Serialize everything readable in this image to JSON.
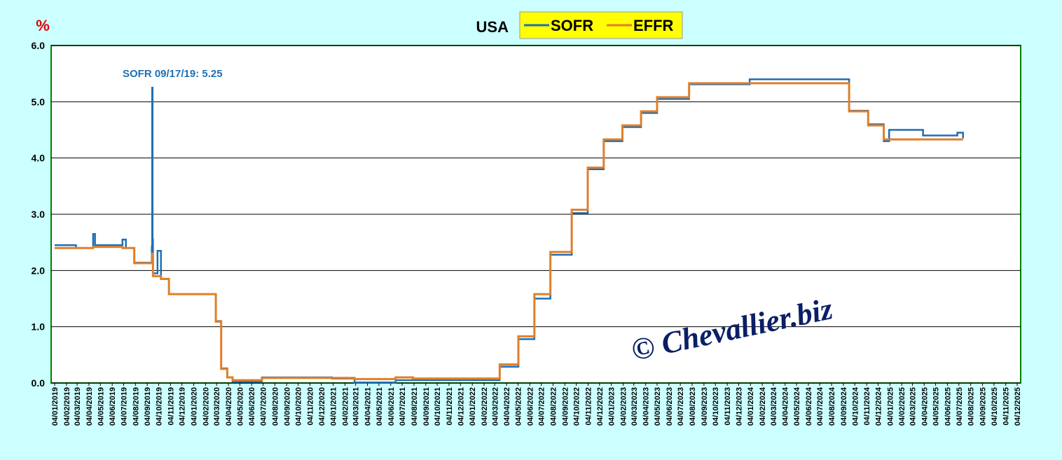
{
  "chart_data": {
    "type": "line",
    "title": "USA",
    "y_unit": "%",
    "annotation": "SOFR 09/17/19: 5.25",
    "watermark": "© Chevallier.biz",
    "step": "after",
    "grid": true,
    "x": [
      "04/01/2019",
      "01/03/2019",
      "15/04/2019",
      "20/04/2019",
      "01/07/2019",
      "10/07/2019",
      "01/08/2019",
      "16/09/2019",
      "17/09/2019",
      "18/09/2019",
      "19/09/2019",
      "01/10/2019",
      "10/10/2019",
      "31/10/2019",
      "02/03/2020",
      "16/03/2020",
      "01/04/2020",
      "15/04/2020",
      "01/07/2020",
      "01/01/2021",
      "01/03/2021",
      "17/06/2021",
      "01/08/2021",
      "17/03/2022",
      "05/05/2022",
      "16/06/2022",
      "28/07/2022",
      "22/09/2022",
      "03/11/2022",
      "15/12/2022",
      "02/02/2023",
      "23/03/2023",
      "04/05/2023",
      "27/07/2023",
      "02/01/2024",
      "01/07/2024",
      "19/09/2024",
      "08/11/2024",
      "19/12/2024",
      "02/01/2025",
      "01/04/2025",
      "30/06/2025",
      "15/07/2025"
    ],
    "series": [
      {
        "name": "SOFR",
        "color": "#1f6fb4",
        "values": [
          2.45,
          2.4,
          2.65,
          2.45,
          2.55,
          2.4,
          2.14,
          2.43,
          5.25,
          2.55,
          1.95,
          2.35,
          1.85,
          1.58,
          1.1,
          0.26,
          0.1,
          0.02,
          0.1,
          0.08,
          0.01,
          0.05,
          0.05,
          0.29,
          0.78,
          1.5,
          2.28,
          3.02,
          3.8,
          4.3,
          4.55,
          4.8,
          5.05,
          5.31,
          5.4,
          5.4,
          4.84,
          4.6,
          4.3,
          4.5,
          4.4,
          4.45,
          4.35
        ]
      },
      {
        "name": "EFFR",
        "color": "#e07f2a",
        "values": [
          2.4,
          2.4,
          2.42,
          2.42,
          2.4,
          2.4,
          2.13,
          2.14,
          2.3,
          2.25,
          1.9,
          1.9,
          1.85,
          1.58,
          1.09,
          0.25,
          0.1,
          0.05,
          0.09,
          0.09,
          0.07,
          0.1,
          0.08,
          0.33,
          0.83,
          1.58,
          2.33,
          3.08,
          3.83,
          4.33,
          4.58,
          4.83,
          5.08,
          5.33,
          5.33,
          5.33,
          4.83,
          4.58,
          4.33,
          4.33,
          4.33,
          4.33,
          4.33
        ]
      }
    ],
    "ylim": [
      0,
      6
    ],
    "yticks": [
      {
        "value": 0,
        "label": "0.0"
      },
      {
        "value": 1,
        "label": "1.0"
      },
      {
        "value": 2,
        "label": "2.0"
      },
      {
        "value": 3,
        "label": "3.0"
      },
      {
        "value": 4,
        "label": "4.0"
      },
      {
        "value": 5,
        "label": "5.0"
      },
      {
        "value": 6,
        "label": "6.0"
      }
    ],
    "xlim": [
      "04/01/2019",
      "04/12/2025"
    ],
    "xticks": [
      "04/01/2019",
      "04/02/2019",
      "04/03/2019",
      "04/04/2019",
      "04/05/2019",
      "04/06/2019",
      "04/07/2019",
      "04/08/2019",
      "04/09/2019",
      "04/10/2019",
      "04/11/2019",
      "04/12/2019",
      "04/01/2020",
      "04/02/2020",
      "04/03/2020",
      "04/04/2020",
      "04/05/2020",
      "04/06/2020",
      "04/07/2020",
      "04/08/2020",
      "04/09/2020",
      "04/10/2020",
      "04/11/2020",
      "04/12/2020",
      "04/01/2021",
      "04/02/2021",
      "04/03/2021",
      "04/04/2021",
      "04/05/2021",
      "04/06/2021",
      "04/07/2021",
      "04/08/2021",
      "04/09/2021",
      "04/10/2021",
      "04/11/2021",
      "04/12/2021",
      "04/01/2022",
      "04/02/2022",
      "04/03/2022",
      "04/04/2022",
      "04/05/2022",
      "04/06/2022",
      "04/07/2022",
      "04/08/2022",
      "04/09/2022",
      "04/10/2022",
      "04/11/2022",
      "04/12/2022",
      "04/01/2023",
      "04/02/2023",
      "04/03/2023",
      "04/04/2023",
      "04/05/2023",
      "04/06/2023",
      "04/07/2023",
      "04/08/2023",
      "04/09/2023",
      "04/10/2023",
      "04/11/2023",
      "04/12/2023",
      "04/01/2024",
      "04/02/2024",
      "04/03/2024",
      "04/04/2024",
      "04/05/2024",
      "04/06/2024",
      "04/07/2024",
      "04/08/2024",
      "04/09/2024",
      "04/10/2024",
      "04/11/2024",
      "04/12/2024",
      "04/01/2025",
      "04/02/2025",
      "04/03/2025",
      "04/04/2025",
      "04/05/2025",
      "04/06/2025",
      "04/07/2025",
      "04/08/2025",
      "04/09/2025",
      "04/10/2025",
      "04/11/2025",
      "04/12/2025"
    ]
  }
}
